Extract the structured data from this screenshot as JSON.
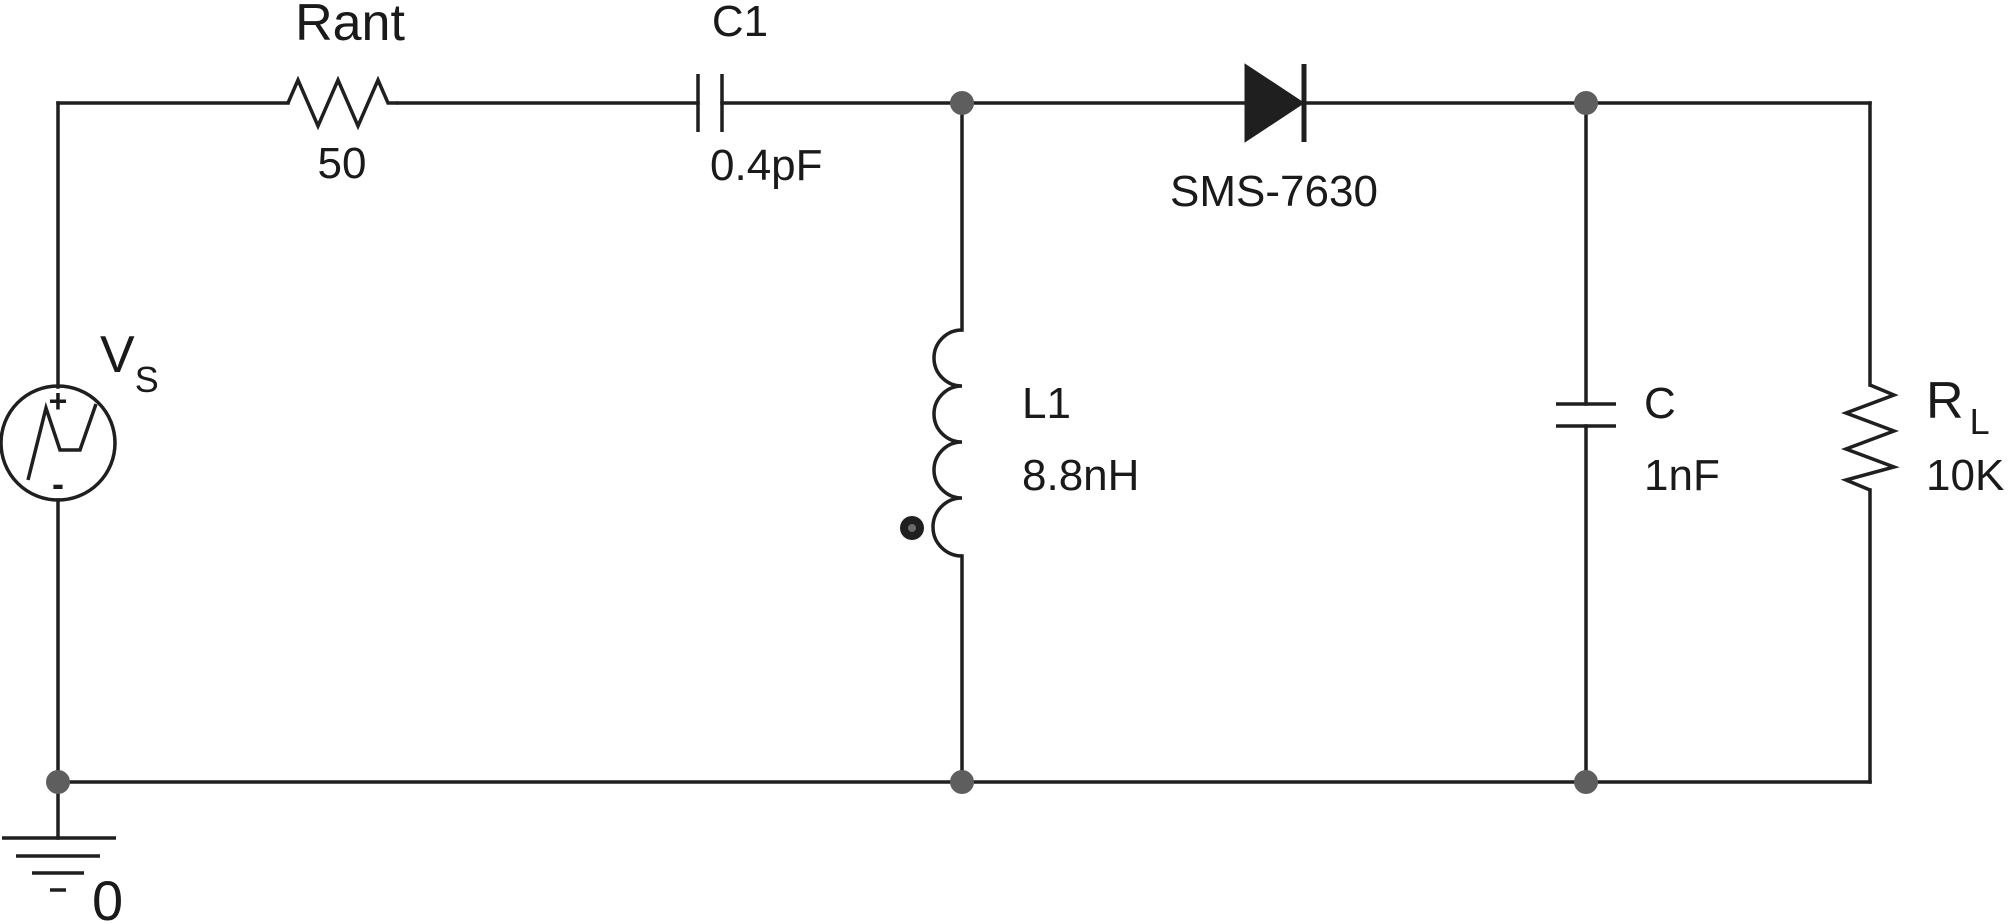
{
  "source": {
    "name": "V",
    "subscript": "S",
    "plus": "+",
    "minus": "-"
  },
  "rant": {
    "name": "Rant",
    "value": "50"
  },
  "c1": {
    "name": "C1",
    "value": "0.4pF"
  },
  "diode": {
    "part": "SMS-7630"
  },
  "l1": {
    "name": "L1",
    "value": "8.8nH"
  },
  "c": {
    "name": "C",
    "value": "1nF"
  },
  "rl": {
    "name": "R",
    "subscript": "L",
    "value": "10K"
  },
  "ground": {
    "label": "0"
  },
  "colors": {
    "wire": "#1f1f1f",
    "node": "#5e5e5e",
    "background": "#ffffff"
  }
}
